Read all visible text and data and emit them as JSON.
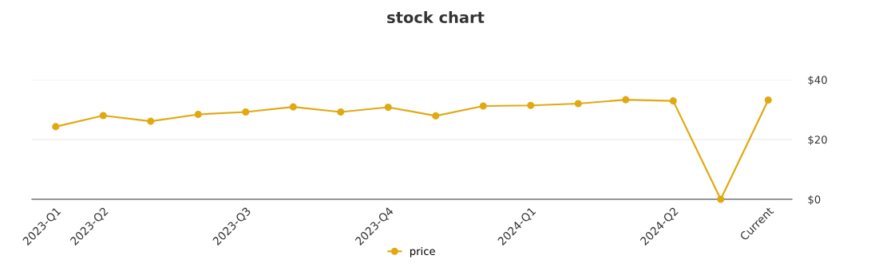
{
  "chart_data": {
    "type": "line",
    "title": "stock chart",
    "categories": [
      "2023-Q1",
      "2023-Q2",
      null,
      null,
      "2023-Q3",
      null,
      null,
      "2023-Q4",
      null,
      null,
      "2024-Q1",
      null,
      null,
      "2024-Q2",
      null,
      "Current"
    ],
    "series": [
      {
        "name": "price",
        "color": "#e0a911",
        "values": [
          24.3,
          28,
          26.1,
          28.4,
          29.2,
          30.9,
          29.2,
          30.8,
          27.9,
          31.2,
          31.4,
          32,
          33.3,
          32.9,
          0,
          33.2
        ]
      }
    ],
    "ylim": [
      0,
      40
    ],
    "yticks": [
      {
        "value": 0,
        "label": "$0"
      },
      {
        "value": 20,
        "label": "$20"
      },
      {
        "value": 40,
        "label": "$40"
      }
    ],
    "grid": "y",
    "legend": "bottom",
    "marker": "circle",
    "line_style": "solid"
  }
}
